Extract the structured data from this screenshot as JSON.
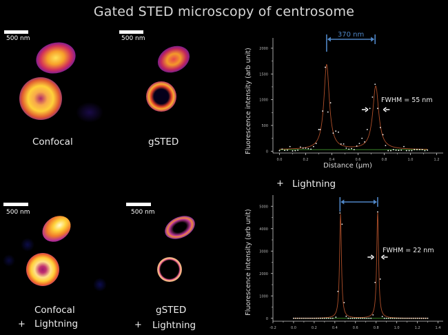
{
  "title": "Gated STED microscopy of centrosome",
  "panels": {
    "confocal": {
      "scale": "500 nm",
      "caption": "Confocal"
    },
    "gsted": {
      "scale": "500 nm",
      "caption": "gSTED"
    },
    "confocal_lightning": {
      "scale": "500 nm",
      "caption": "Confocal",
      "plus": "+",
      "caption2": "Lightning"
    },
    "gsted_lightning": {
      "scale": "500 nm",
      "caption": "gSTED",
      "plus": "+",
      "caption2": "Lightning"
    }
  },
  "middle_label": {
    "plus": "+",
    "text": "Lightning"
  },
  "colors": {
    "fit": "#b0502a",
    "baseline": "#3a8a2a",
    "bracket": "#4f86c6",
    "points": "#ffffff",
    "axis": "#d0d0d0"
  },
  "chart_data": [
    {
      "type": "scatter",
      "title": "",
      "xlabel": "Distance (µm)",
      "ylabel": "Fluorescence intensity (arb unit)",
      "xlim": [
        -0.05,
        1.25
      ],
      "ylim": [
        -250,
        2200
      ],
      "xticks": [
        0.0,
        0.2,
        0.4,
        0.6,
        0.8,
        1.0,
        1.2
      ],
      "xtick_labels": [
        "0.0",
        "0.2",
        "0.4",
        "0.6",
        "0.8",
        "1.0",
        "1.2"
      ],
      "yticks": [
        0,
        500,
        1000,
        1500,
        2000
      ],
      "ytick_labels": [
        "0",
        "500",
        "1000",
        "1500",
        "2000"
      ],
      "annotations": {
        "separation": "370 nm",
        "fwhm": "FWHM = 55 nm"
      },
      "peaks": [
        {
          "x": 0.36,
          "y": 1650,
          "width": 0.05
        },
        {
          "x": 0.735,
          "y": 1230,
          "width": 0.055
        }
      ],
      "baseline": 30,
      "bracket_x": [
        0.36,
        0.73
      ],
      "points": [
        [
          0.0,
          10
        ],
        [
          0.02,
          40
        ],
        [
          0.04,
          15
        ],
        [
          0.06,
          20
        ],
        [
          0.08,
          90
        ],
        [
          0.1,
          5
        ],
        [
          0.12,
          10
        ],
        [
          0.14,
          20
        ],
        [
          0.16,
          80
        ],
        [
          0.18,
          60
        ],
        [
          0.2,
          60
        ],
        [
          0.22,
          50
        ],
        [
          0.24,
          40
        ],
        [
          0.26,
          90
        ],
        [
          0.28,
          150
        ],
        [
          0.3,
          420
        ],
        [
          0.31,
          420
        ],
        [
          0.33,
          780
        ],
        [
          0.35,
          1630
        ],
        [
          0.37,
          760
        ],
        [
          0.39,
          940
        ],
        [
          0.41,
          350
        ],
        [
          0.43,
          390
        ],
        [
          0.45,
          370
        ],
        [
          0.47,
          140
        ],
        [
          0.49,
          140
        ],
        [
          0.51,
          60
        ],
        [
          0.53,
          40
        ],
        [
          0.55,
          50
        ],
        [
          0.57,
          30
        ],
        [
          0.59,
          100
        ],
        [
          0.61,
          150
        ],
        [
          0.63,
          250
        ],
        [
          0.65,
          180
        ],
        [
          0.67,
          420
        ],
        [
          0.69,
          830
        ],
        [
          0.71,
          1050
        ],
        [
          0.73,
          1300
        ],
        [
          0.75,
          830
        ],
        [
          0.77,
          460
        ],
        [
          0.79,
          320
        ],
        [
          0.81,
          110
        ],
        [
          0.83,
          10
        ],
        [
          0.85,
          10
        ],
        [
          0.87,
          30
        ],
        [
          0.89,
          20
        ],
        [
          0.91,
          15
        ],
        [
          0.93,
          20
        ],
        [
          0.95,
          90
        ],
        [
          0.97,
          10
        ],
        [
          0.99,
          10
        ],
        [
          1.01,
          10
        ],
        [
          1.03,
          30
        ],
        [
          1.05,
          30
        ],
        [
          1.07,
          30
        ],
        [
          1.09,
          30
        ],
        [
          1.11,
          10
        ],
        [
          1.13,
          20
        ]
      ]
    },
    {
      "type": "scatter",
      "title": "",
      "xlabel": "",
      "ylabel": "Fluorescence intensity (arb unit)",
      "xlim": [
        -0.2,
        1.45
      ],
      "ylim": [
        -500,
        5500
      ],
      "xticks": [
        -0.2,
        0.0,
        0.2,
        0.4,
        0.6,
        0.8,
        1.0,
        1.2,
        1.4
      ],
      "xtick_labels": [
        "-0.2",
        "0.0",
        "0.2",
        "0.4",
        "0.6",
        "0.8",
        "1.0",
        "1.2",
        "1.4"
      ],
      "yticks": [
        0,
        1000,
        2000,
        3000,
        4000,
        5000
      ],
      "ytick_labels": [
        "0",
        "1000",
        "2000",
        "3000",
        "4000",
        "5000"
      ],
      "annotations": {
        "separation": "",
        "fwhm": "FWHM = 22 nm"
      },
      "peaks": [
        {
          "x": 0.455,
          "y": 4650,
          "width": 0.022
        },
        {
          "x": 0.815,
          "y": 4750,
          "width": 0.022
        }
      ],
      "baseline": 0,
      "bracket_x": [
        0.45,
        0.815
      ],
      "points": [
        [
          0.0,
          0
        ],
        [
          0.02,
          0
        ],
        [
          0.04,
          0
        ],
        [
          0.06,
          0
        ],
        [
          0.08,
          0
        ],
        [
          0.1,
          0
        ],
        [
          0.12,
          0
        ],
        [
          0.14,
          0
        ],
        [
          0.16,
          0
        ],
        [
          0.18,
          0
        ],
        [
          0.2,
          0
        ],
        [
          0.22,
          0
        ],
        [
          0.24,
          0
        ],
        [
          0.26,
          0
        ],
        [
          0.28,
          0
        ],
        [
          0.3,
          0
        ],
        [
          0.32,
          0
        ],
        [
          0.34,
          0
        ],
        [
          0.36,
          0
        ],
        [
          0.38,
          0
        ],
        [
          0.41,
          50
        ],
        [
          0.43,
          1200
        ],
        [
          0.45,
          4700
        ],
        [
          0.47,
          4200
        ],
        [
          0.49,
          700
        ],
        [
          0.51,
          90
        ],
        [
          0.53,
          0
        ],
        [
          0.55,
          0
        ],
        [
          0.57,
          0
        ],
        [
          0.59,
          0
        ],
        [
          0.61,
          0
        ],
        [
          0.63,
          0
        ],
        [
          0.65,
          0
        ],
        [
          0.67,
          0
        ],
        [
          0.69,
          0
        ],
        [
          0.71,
          0
        ],
        [
          0.73,
          0
        ],
        [
          0.75,
          0
        ],
        [
          0.77,
          150
        ],
        [
          0.79,
          1600
        ],
        [
          0.815,
          4750
        ],
        [
          0.84,
          1750
        ],
        [
          0.86,
          80
        ],
        [
          0.88,
          0
        ],
        [
          0.9,
          0
        ],
        [
          0.92,
          0
        ],
        [
          0.94,
          0
        ],
        [
          0.96,
          0
        ],
        [
          0.98,
          0
        ],
        [
          1.0,
          0
        ],
        [
          1.02,
          0
        ],
        [
          1.04,
          0
        ],
        [
          1.06,
          0
        ],
        [
          1.08,
          0
        ],
        [
          1.1,
          0
        ],
        [
          1.12,
          0
        ],
        [
          1.14,
          0
        ],
        [
          1.16,
          0
        ],
        [
          1.18,
          0
        ],
        [
          1.2,
          0
        ],
        [
          1.22,
          0
        ],
        [
          1.24,
          0
        ],
        [
          1.26,
          0
        ],
        [
          1.28,
          0
        ],
        [
          1.3,
          0
        ]
      ]
    }
  ]
}
